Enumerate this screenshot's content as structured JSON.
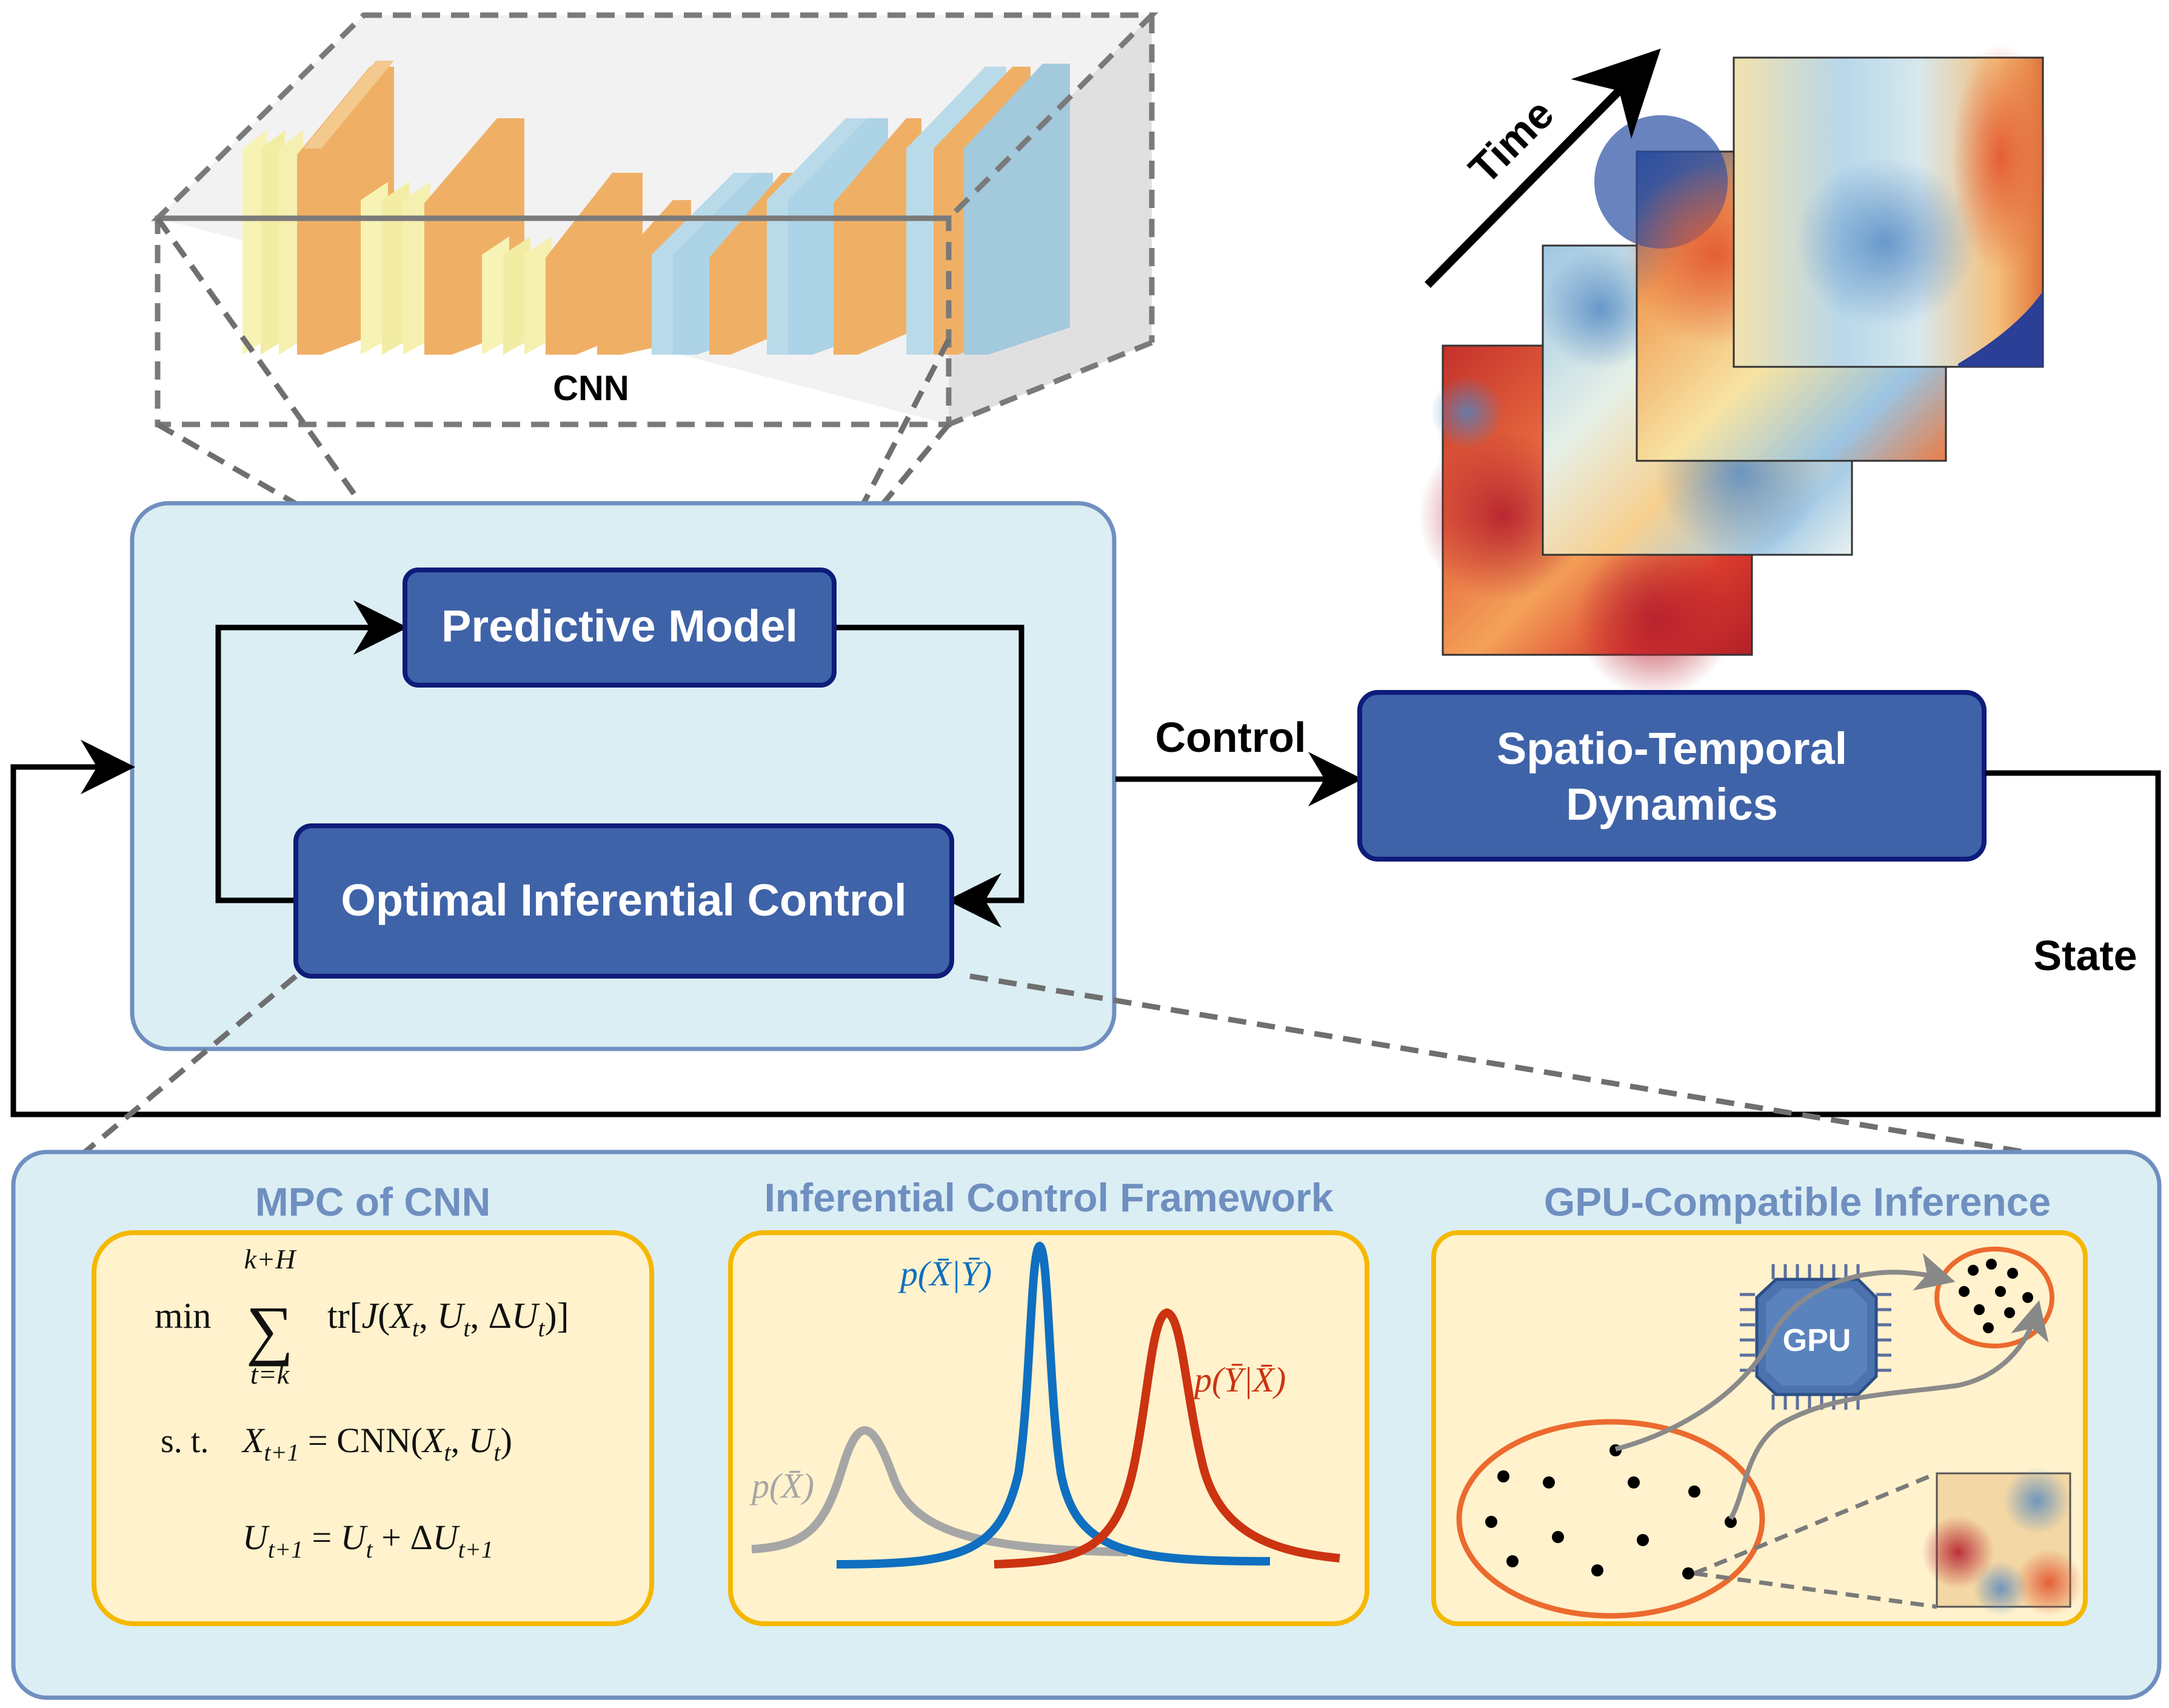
{
  "labels": {
    "cnn": "CNN",
    "time": "Time",
    "predictive_model": "Predictive Model",
    "optimal_control": "Optimal Inferential Control",
    "control": "Control",
    "dynamics_line1": "Spatio-Temporal",
    "dynamics_line2": "Dynamics",
    "state": "State"
  },
  "panels": {
    "mpc": {
      "title": "MPC of CNN",
      "sum_upper": "k+H",
      "sum_lower": "t=k",
      "objective_min": "min",
      "objective_rest": "tr[J(X",
      "constraint_st": "s. t.",
      "constraint_1": "= CNN(X",
      "constraint_2": "= U"
    },
    "inferential": {
      "title": "Inferential Control Framework",
      "prior_label": "p(X̄)",
      "posterior_label": "p(X̄|Ȳ)",
      "likelihood_label": "p(Ȳ|X̄)"
    },
    "gpu": {
      "title": "GPU-Compatible Inference",
      "chip_label": "GPU"
    }
  },
  "colors": {
    "box_fill": "#3f63a8",
    "box_border": "#0e1c7a",
    "container_fill": "#dbeef4",
    "container_border": "#6f8fc0",
    "panel_fill": "#fff2cc",
    "panel_border": "#f5b800",
    "prior_curve": "#a6a6a6",
    "posterior_curve": "#0f6fc0",
    "likelihood_curve": "#cc3311",
    "ellipse": "#ec6a2e"
  }
}
